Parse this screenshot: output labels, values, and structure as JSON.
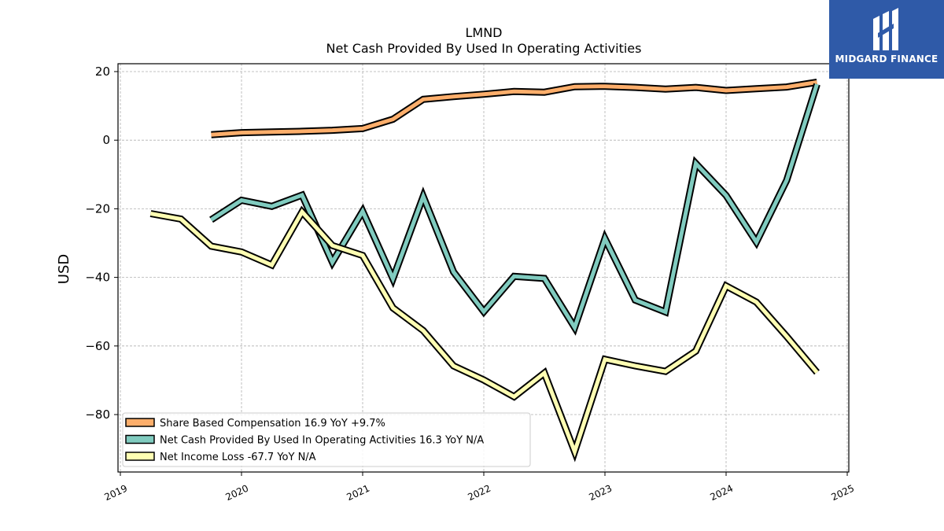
{
  "header": {
    "ticker": "LMND",
    "subtitle": "Net Cash Provided By Used In Operating Activities"
  },
  "logo": {
    "text": "MIDGARD FINANCE",
    "background": "#2f5aa8"
  },
  "chart_data": {
    "type": "line",
    "title": "LMND",
    "subtitle": "Net Cash Provided By Used In Operating Activities",
    "ylabel": "USD",
    "xlabel": "",
    "xlim": [
      2019.0,
      2025.0
    ],
    "ylim": [
      -97,
      22
    ],
    "x_ticks": [
      "2019",
      "2020",
      "2021",
      "2022",
      "2023",
      "2024",
      "2025"
    ],
    "y_ticks": [
      20,
      0,
      -20,
      -40,
      -60,
      -80
    ],
    "y_tick_labels": [
      "20",
      "0",
      "−20",
      "−40",
      "−60",
      "−80"
    ],
    "grid": true,
    "legend_position": "lower-left",
    "series": [
      {
        "name": "Share Based Compensation  16.9 YoY +9.7%",
        "color": "#fdae6b",
        "x": [
          2019.75,
          2020.0,
          2020.25,
          2020.5,
          2020.75,
          2021.0,
          2021.25,
          2021.5,
          2021.75,
          2022.0,
          2022.25,
          2022.5,
          2022.75,
          2023.0,
          2023.25,
          2023.5,
          2023.75,
          2024.0,
          2024.25,
          2024.5,
          2024.75
        ],
        "y": [
          1.6,
          2.2,
          2.4,
          2.6,
          2.9,
          3.4,
          6.1,
          11.9,
          12.7,
          13.4,
          14.2,
          14.0,
          15.6,
          15.7,
          15.4,
          14.9,
          15.4,
          14.5,
          15.0,
          15.5,
          16.9
        ]
      },
      {
        "name": "Net Cash Provided By Used In Operating Activities  16.3 YoY N/A",
        "color": "#80cbbf",
        "x": [
          2019.75,
          2020.0,
          2020.25,
          2020.5,
          2020.75,
          2021.0,
          2021.25,
          2021.5,
          2021.75,
          2022.0,
          2022.25,
          2022.5,
          2022.75,
          2023.0,
          2023.25,
          2023.5,
          2023.75,
          2024.0,
          2024.25,
          2024.5,
          2024.75
        ],
        "y": [
          -23.2,
          -17.5,
          -19.3,
          -16.0,
          -35.6,
          -20.7,
          -40.4,
          -16.4,
          -38.4,
          -50.0,
          -39.7,
          -40.3,
          -54.6,
          -28.7,
          -46.6,
          -50.1,
          -6.8,
          -16.1,
          -29.7,
          -11.7,
          16.3
        ]
      },
      {
        "name": "Net Income Loss  -67.7 YoY N/A",
        "color": "#ffffb3",
        "x": [
          2019.25,
          2019.5,
          2019.75,
          2020.0,
          2020.25,
          2020.5,
          2020.75,
          2021.0,
          2021.25,
          2021.5,
          2021.75,
          2022.0,
          2022.25,
          2022.5,
          2022.75,
          2023.0,
          2023.25,
          2023.5,
          2023.75,
          2024.0,
          2024.25,
          2024.5,
          2024.75
        ],
        "y": [
          -21.4,
          -23.0,
          -30.9,
          -32.6,
          -36.4,
          -20.9,
          -30.7,
          -33.6,
          -48.9,
          -55.5,
          -65.8,
          -69.9,
          -74.8,
          -67.9,
          -90.8,
          -63.9,
          -65.8,
          -67.4,
          -61.5,
          -42.5,
          -47.2,
          -57.2,
          -67.7
        ]
      }
    ]
  }
}
